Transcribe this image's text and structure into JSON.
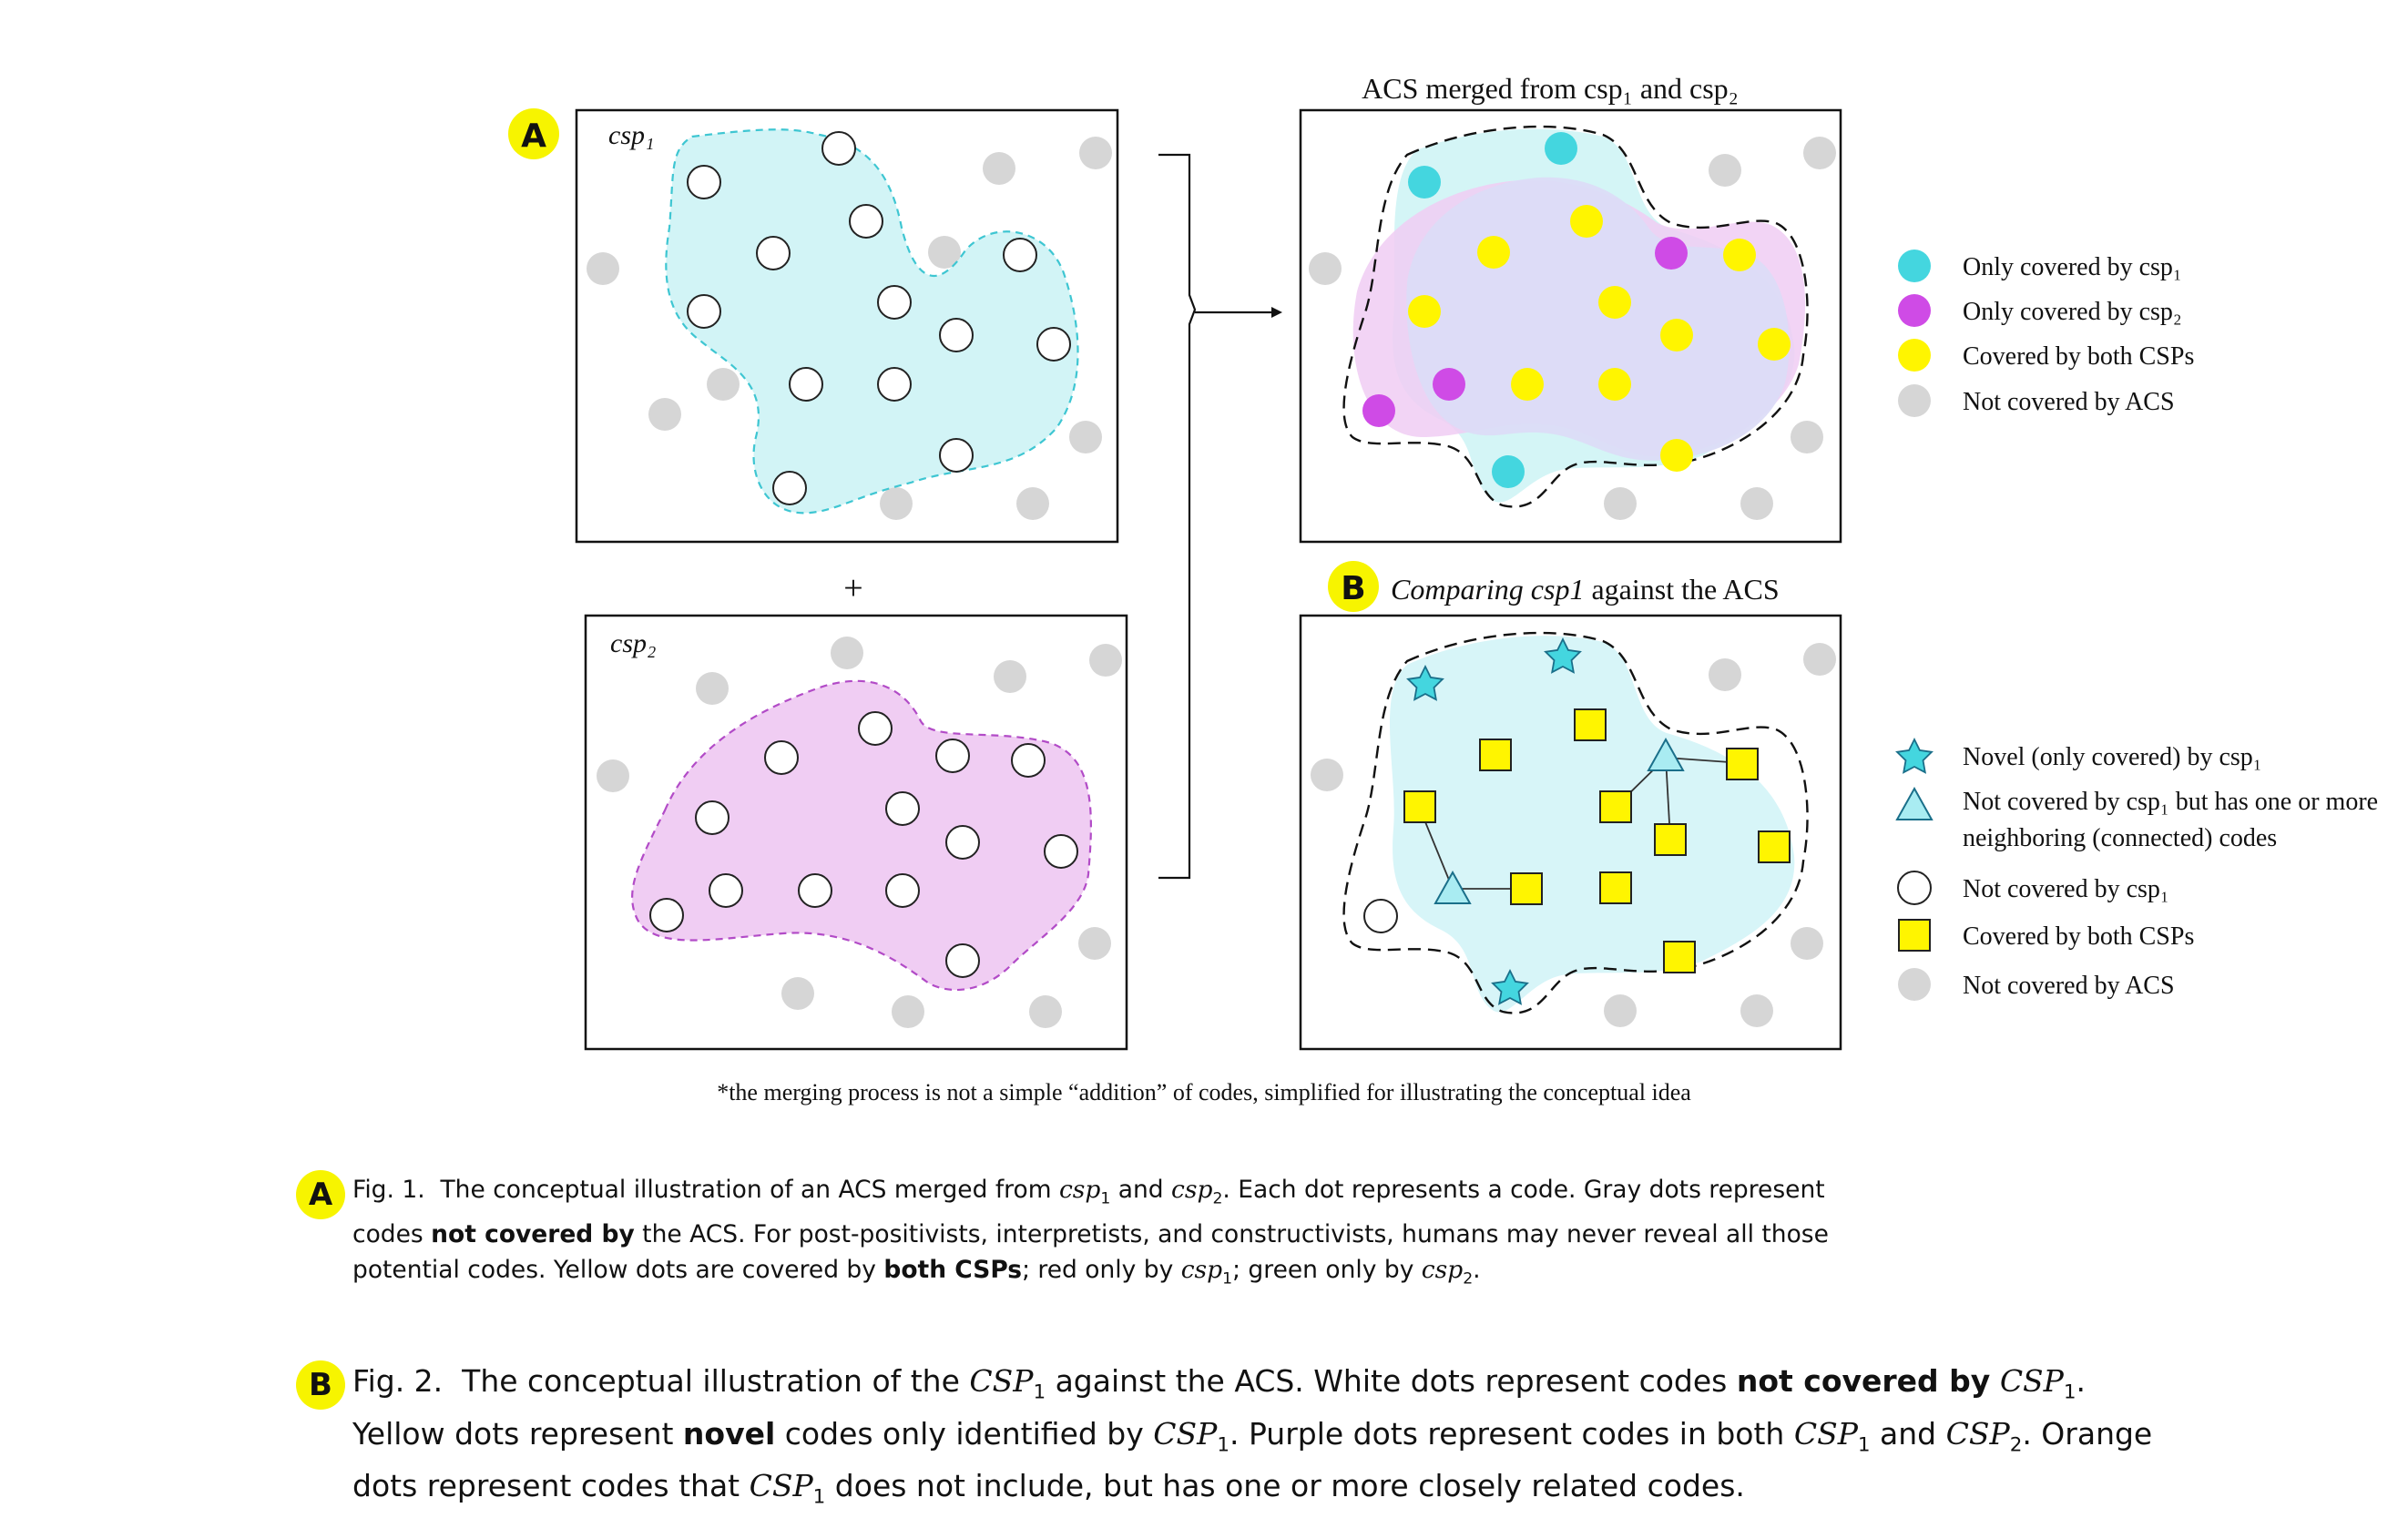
{
  "panel_a": {
    "badge": "A",
    "csp1_label": "csp₁",
    "csp2_label": "csp₂",
    "plus": "+",
    "merged_title": "ACS merged from csp₁ and csp₂",
    "legend": [
      {
        "label": "Only covered by csp₁",
        "color": "#44d6df"
      },
      {
        "label": "Only covered by csp₂",
        "color": "#cf4be6"
      },
      {
        "label": "Covered by both CSPs",
        "color": "#fff500"
      },
      {
        "label": "Not covered by ACS",
        "color": "#d6d6d6"
      }
    ]
  },
  "panel_b": {
    "badge": "B",
    "title_italic": "Comparing csp1",
    "title_rest": " against the ACS",
    "legend": [
      {
        "label": "Novel (only covered) by csp₁",
        "shape": "star-icon"
      },
      {
        "label_line1": "Not covered by csp₁ but has one or more",
        "label_line2": "neighboring (connected) codes",
        "shape": "triangle-icon"
      },
      {
        "label": "Not covered by csp₁",
        "shape": "circle-icon"
      },
      {
        "label": "Covered by both CSPs",
        "shape": "square-icon"
      },
      {
        "label": "Not covered by ACS",
        "shape": "gray-dot-icon"
      }
    ]
  },
  "footnote": "*the merging process is not a simple “addition” of codes, simplified for illustrating the conceptual idea",
  "captions": {
    "a": {
      "badge": "A",
      "fig": "Fig. 1.",
      "t1": "The conceptual illustration of an ACS merged from ",
      "csp1": "csp",
      "t2": " and ",
      "csp2": "csp",
      "t3": ". Each dot represents a code. Gray dots represent codes ",
      "bold1": "not covered by",
      "t4": " the ACS. For post-positivists, interpretists, and constructivists, humans may never reveal all those potential codes. Yellow dots are covered by ",
      "bold2": "both CSPs",
      "t5": "; red only by ",
      "t6": "; green only by ",
      "t7": "."
    },
    "b": {
      "badge": "B",
      "fig": "Fig. 2.",
      "t1": "The conceptual illustration of the ",
      "csp": "CSP",
      "t2": " against the ACS. White dots represent codes ",
      "bold1": "not covered by",
      "t3": ". Yellow dots represent ",
      "bold2": "novel",
      "t4": " codes only identified by ",
      "t5": ". Purple dots represent codes in both ",
      "t6": " and ",
      "t7": ". Orange dots represent codes that ",
      "t8": " does not include, but has one or more closely related codes."
    }
  }
}
